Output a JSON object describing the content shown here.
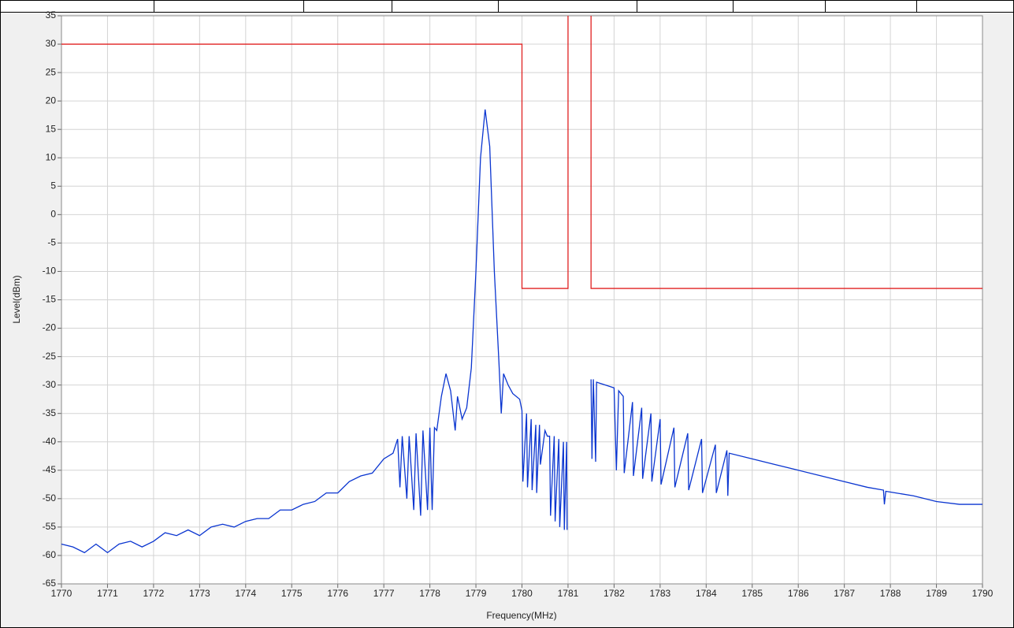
{
  "chart_data": {
    "type": "line",
    "xlabel": "Frequency(MHz)",
    "ylabel": "Level(dBm)",
    "xlim": [
      1770,
      1790
    ],
    "ylim": [
      -65,
      35
    ],
    "xticks": [
      1770,
      1771,
      1772,
      1773,
      1774,
      1775,
      1776,
      1777,
      1778,
      1779,
      1780,
      1781,
      1782,
      1783,
      1784,
      1785,
      1786,
      1787,
      1788,
      1789,
      1790
    ],
    "yticks": [
      -65,
      -60,
      -55,
      -50,
      -45,
      -40,
      -35,
      -30,
      -25,
      -20,
      -15,
      -10,
      -5,
      0,
      5,
      10,
      15,
      20,
      25,
      30,
      35
    ],
    "grid": true,
    "series": [
      {
        "color": "#0a35d0",
        "x": [
          1770,
          1770.25,
          1770.5,
          1770.75,
          1771,
          1771.25,
          1771.5,
          1771.75,
          1772,
          1772.25,
          1772.5,
          1772.75,
          1773,
          1773.25,
          1773.5,
          1773.75,
          1774,
          1774.25,
          1774.5,
          1774.75,
          1775,
          1775.25,
          1775.5,
          1775.75,
          1776,
          1776.25,
          1776.5,
          1776.75,
          1777,
          1777.2,
          1777.3,
          1777.35,
          1777.4,
          1777.5,
          1777.55,
          1777.65,
          1777.7,
          1777.8,
          1777.85,
          1777.95,
          1778,
          1778.05,
          1778.1,
          1778.15,
          1778.25,
          1778.35,
          1778.45,
          1778.55,
          1778.6,
          1778.7,
          1778.8,
          1778.9,
          1779.0,
          1779.1,
          1779.2,
          1779.3,
          1779.4,
          1779.5,
          1779.55,
          1779.6,
          1779.7,
          1779.8,
          1779.95,
          1780,
          1780.02,
          1780.1,
          1780.12,
          1780.2,
          1780.22,
          1780.3,
          1780.32,
          1780.38,
          1780.4,
          1780.5,
          1780.55,
          1780.6,
          1780.62,
          1780.7,
          1780.72,
          1780.8,
          1780.82,
          1780.9,
          1780.92,
          1780.97,
          1780.98,
          1781.2,
          1781.5,
          1781.52,
          1781.55,
          1781.6,
          1781.62,
          1782,
          1782.05,
          1782.1,
          1782.2,
          1782.22,
          1782.4,
          1782.42,
          1782.6,
          1782.62,
          1782.8,
          1782.82,
          1783,
          1783.02,
          1783.3,
          1783.32,
          1783.6,
          1783.62,
          1783.9,
          1783.92,
          1784.2,
          1784.22,
          1784.45,
          1784.47,
          1784.5,
          1785,
          1785.5,
          1786,
          1786.5,
          1787,
          1787.5,
          1787.85,
          1787.87,
          1787.9,
          1788.5,
          1789,
          1789.5,
          1790
        ],
        "values": [
          -58,
          -58.5,
          -59.5,
          -58,
          -59.5,
          -58,
          -57.5,
          -58.5,
          -57.5,
          -56,
          -56.5,
          -55.5,
          -56.5,
          -55,
          -54.5,
          -55,
          -54,
          -53.5,
          -53.5,
          -52,
          -52,
          -51,
          -50.5,
          -49,
          -49,
          -47,
          -46,
          -45.5,
          -43,
          -42,
          -39.5,
          -48,
          -39,
          -50,
          -39,
          -52,
          -38.5,
          -53,
          -38,
          -52,
          -37.5,
          -52,
          -37.5,
          -38,
          -32,
          -28,
          -31,
          -38,
          -32,
          -36,
          -34,
          -27,
          -10,
          10,
          18.5,
          12,
          -10,
          -26,
          -35,
          -28,
          -30,
          -31.5,
          -32.5,
          -34.5,
          -47,
          -35,
          -48,
          -36,
          -48.5,
          -37,
          -49,
          -37,
          -44,
          -38,
          -39,
          -39,
          -53,
          -39,
          -54,
          -39.5,
          -55,
          -40,
          -55.5,
          -40,
          -55.5,
          null,
          -29,
          -43,
          -29,
          -43.5,
          -29.5,
          -30.5,
          -45,
          -31,
          -32,
          -45.5,
          -33,
          -46,
          -34,
          -46.5,
          -35,
          -47,
          -36,
          -47.5,
          -37.5,
          -48,
          -38.5,
          -48.5,
          -39.5,
          -49,
          -40.5,
          -49,
          -41.5,
          -49.5,
          -42,
          -43,
          -44,
          -45,
          -46,
          -47,
          -48,
          -48.5,
          -51,
          -48.7,
          -49.5,
          -50.5,
          -51,
          -51
        ]
      },
      {
        "color": "#e02020",
        "x": [
          1770,
          1780,
          1780,
          1781,
          1781,
          1781.25,
          1781.5,
          1781.5,
          1790
        ],
        "values": [
          30,
          30,
          -13,
          -13,
          35,
          null,
          35,
          -13,
          -13
        ]
      }
    ]
  }
}
